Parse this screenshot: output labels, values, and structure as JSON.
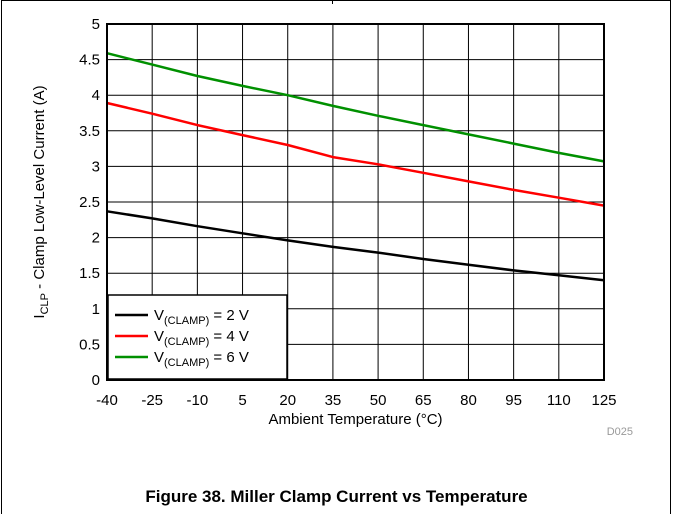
{
  "figure_caption": "Figure 38. Miller Clamp Current vs Temperature",
  "figure_code": "D025",
  "chart_data": {
    "type": "line",
    "title": "",
    "xlabel": "Ambient Temperature (°C)",
    "ylabel_main": "I",
    "ylabel_sub": "CLP",
    "ylabel_rest": " - Clamp Low-Level Current (A)",
    "xlim": [
      -40,
      125
    ],
    "ylim": [
      0,
      5
    ],
    "x_ticks": [
      -40,
      -25,
      -10,
      5,
      20,
      35,
      50,
      65,
      80,
      95,
      110,
      125
    ],
    "y_ticks": [
      0,
      0.5,
      1,
      1.5,
      2,
      2.5,
      3,
      3.5,
      4,
      4.5,
      5
    ],
    "x_tick_labels": [
      "-40",
      "-25",
      "-10",
      "5",
      "20",
      "35",
      "50",
      "65",
      "80",
      "95",
      "110",
      "125"
    ],
    "y_tick_labels": [
      "0",
      "0.5",
      "1",
      "1.5",
      "2",
      "2.5",
      "3",
      "3.5",
      "4",
      "4.5",
      "5"
    ],
    "grid": true,
    "legend_position": "bottom-left",
    "series": [
      {
        "legend_prefix": "V",
        "legend_sub": "(CLAMP)",
        "legend_suffix": " = 2 V",
        "color": "#000000",
        "x": [
          -40,
          -25,
          -10,
          5,
          20,
          35,
          50,
          65,
          80,
          95,
          110,
          125
        ],
        "y": [
          2.37,
          2.27,
          2.16,
          2.06,
          1.96,
          1.87,
          1.79,
          1.7,
          1.62,
          1.54,
          1.47,
          1.4
        ]
      },
      {
        "legend_prefix": "V",
        "legend_sub": "(CLAMP)",
        "legend_suffix": " = 4 V",
        "color": "#ff0000",
        "x": [
          -40,
          -25,
          -10,
          5,
          20,
          35,
          50,
          65,
          80,
          95,
          110,
          125
        ],
        "y": [
          3.89,
          3.74,
          3.58,
          3.44,
          3.3,
          3.13,
          3.03,
          2.91,
          2.79,
          2.67,
          2.56,
          2.45
        ]
      },
      {
        "legend_prefix": "V",
        "legend_sub": "(CLAMP)",
        "legend_suffix": " = 6 V",
        "color": "#009000",
        "x": [
          -40,
          -25,
          -10,
          5,
          20,
          35,
          50,
          65,
          80,
          95,
          110,
          125
        ],
        "y": [
          4.59,
          4.43,
          4.27,
          4.13,
          4.0,
          3.85,
          3.71,
          3.58,
          3.45,
          3.32,
          3.19,
          3.07
        ]
      }
    ]
  }
}
